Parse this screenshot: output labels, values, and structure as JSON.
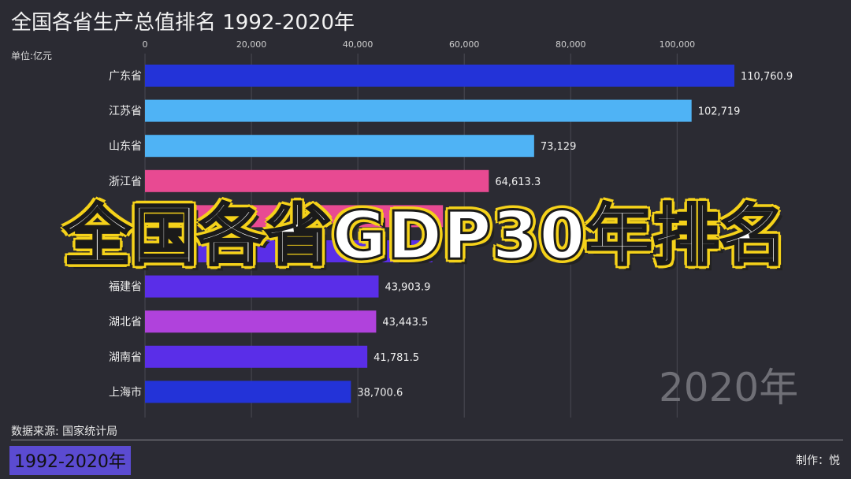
{
  "title": "全国各省生产总值排名 1992-2020年",
  "unit_label": "单位:亿元",
  "overlay_caption": "全国各省GDP30年排名",
  "year_watermark": "2020年",
  "source": "数据来源: 国家统计局",
  "range_badge": "1992-2020年",
  "credit": "制作：悦",
  "chart_data": {
    "type": "bar",
    "orientation": "horizontal",
    "title": "全国各省生产总值排名 1992-2020年",
    "xlabel": "",
    "ylabel": "",
    "xlim": [
      0,
      115000
    ],
    "x_ticks": [
      0,
      20000,
      40000,
      60000,
      80000,
      100000
    ],
    "x_tick_labels": [
      "0",
      "20,000",
      "40,000",
      "60,000",
      "80,000",
      "100,000"
    ],
    "grid": true,
    "categories": [
      "广东省",
      "江苏省",
      "山东省",
      "浙江省",
      "",
      "",
      "福建省",
      "湖北省",
      "湖南省",
      "上海市"
    ],
    "values": [
      110760.9,
      102719,
      73129,
      64613.3,
      56000,
      54000,
      43903.9,
      43443.5,
      41781.5,
      38700.6
    ],
    "value_labels": [
      "110,760.9",
      "102,719",
      "73,129",
      "64,613.3",
      "",
      "",
      "43,903.9",
      "43,443.5",
      "41,781.5",
      "38,700.6"
    ],
    "colors": [
      "#2333d8",
      "#4fb3f5",
      "#4fb3f5",
      "#e84a92",
      "#e84a92",
      "#5a2ee8",
      "#5a2ee8",
      "#b042dc",
      "#5a2ee8",
      "#2333d8"
    ]
  }
}
